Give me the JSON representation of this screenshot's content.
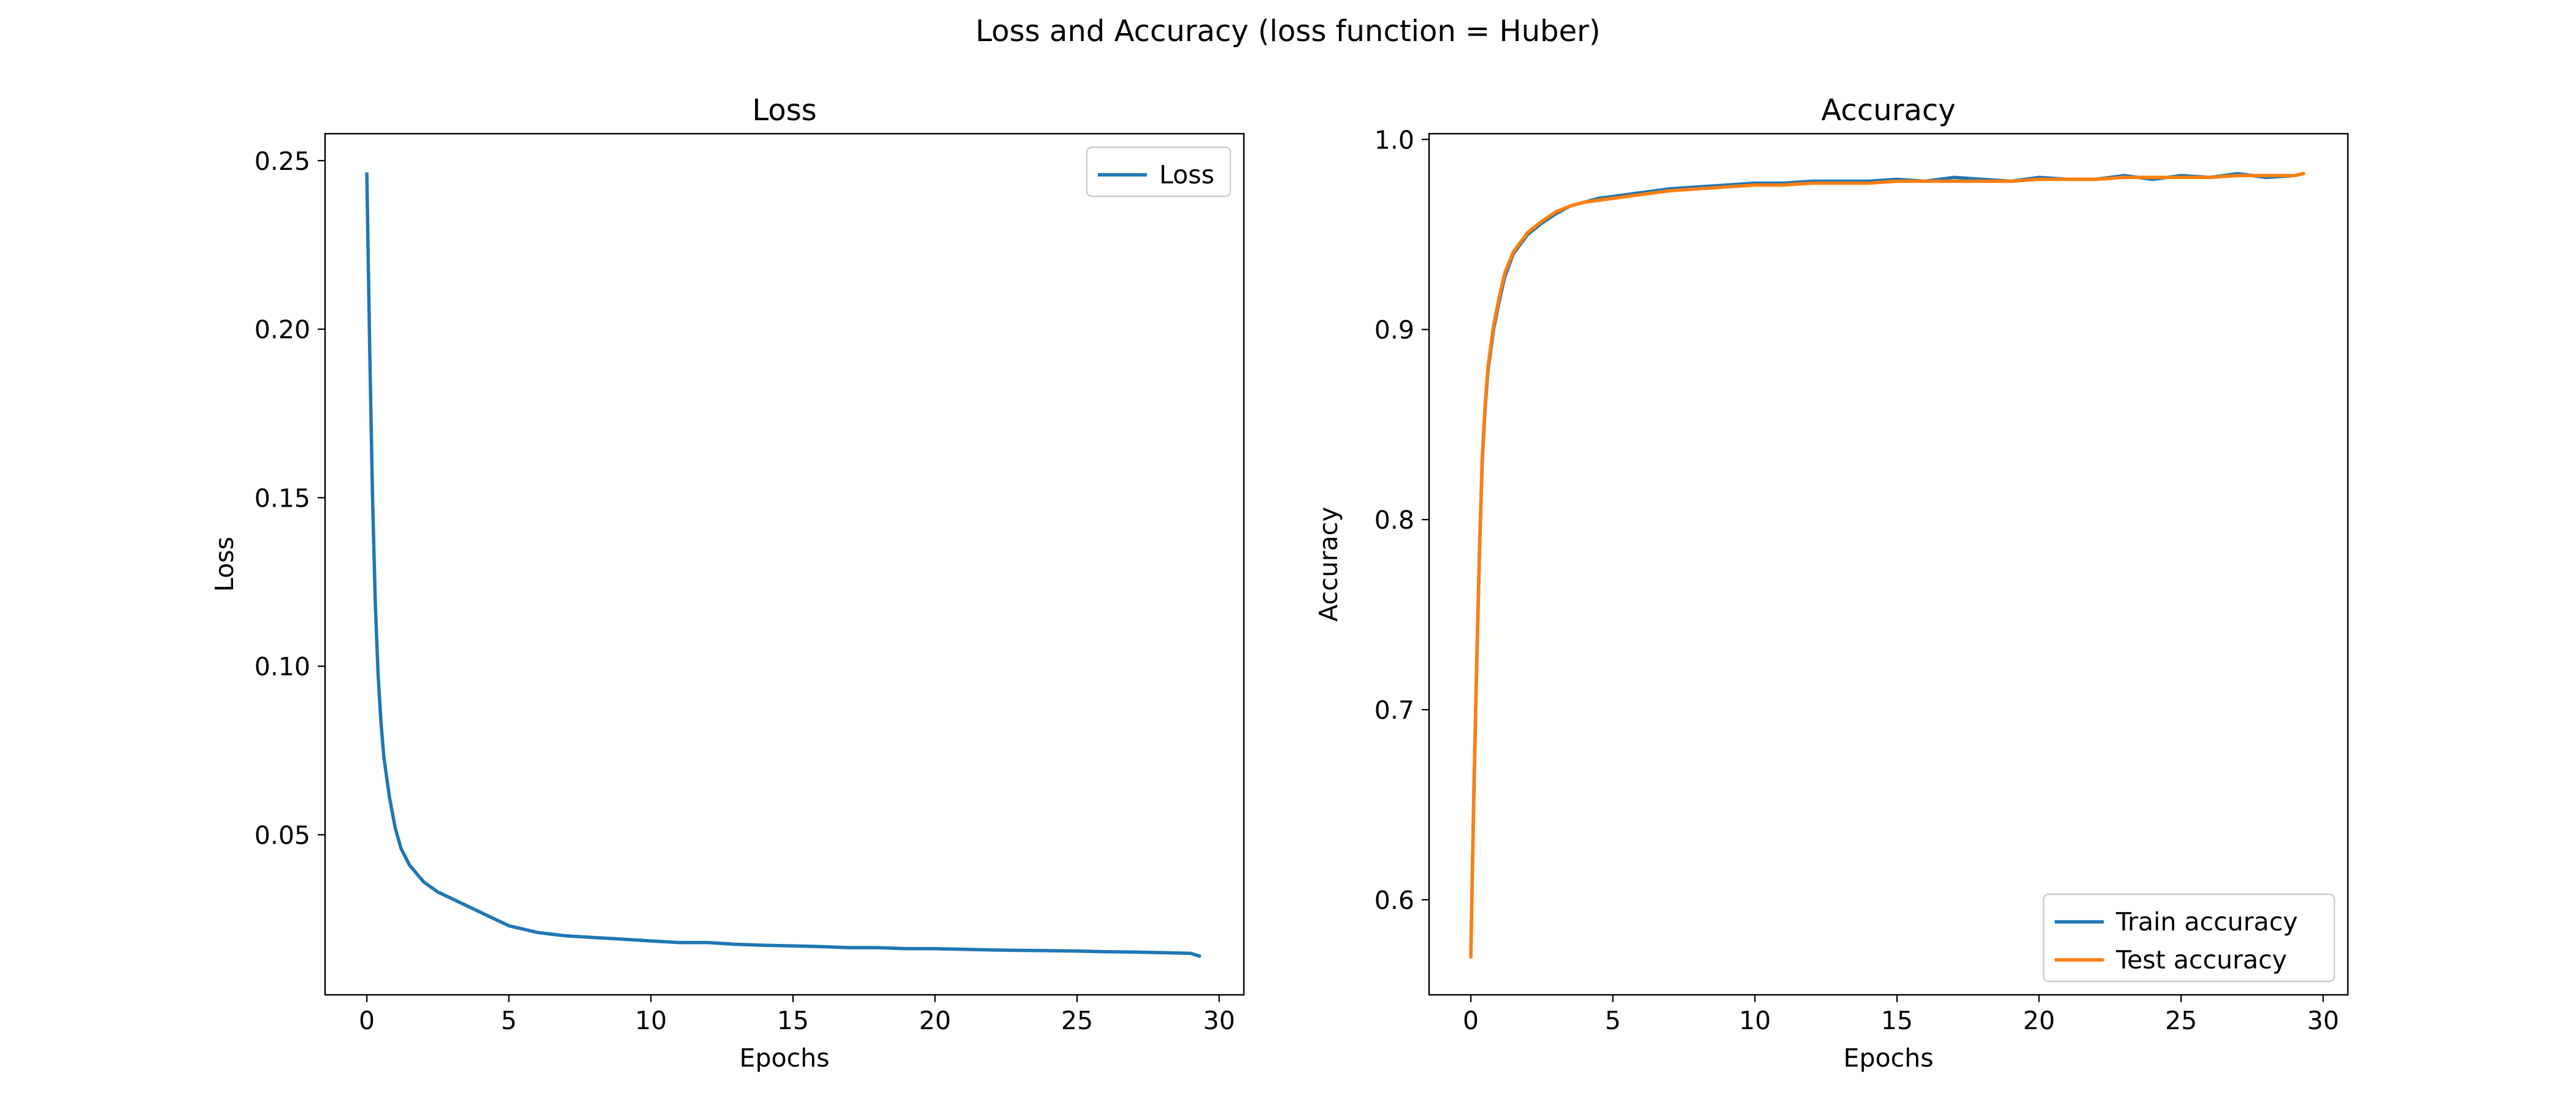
{
  "figure": {
    "suptitle": "Loss and Accuracy (loss function = Huber)"
  },
  "chart_data": [
    {
      "type": "line",
      "title": "Loss",
      "xlabel": "Epochs",
      "ylabel": "Loss",
      "xlim": [
        -1.47,
        30.87
      ],
      "ylim": [
        0.0025,
        0.258
      ],
      "xticks": [
        0,
        5,
        10,
        15,
        20,
        25,
        30
      ],
      "yticks": [
        0.05,
        0.1,
        0.15,
        0.2,
        0.25
      ],
      "xtick_labels": [
        "0",
        "5",
        "10",
        "15",
        "20",
        "25",
        "30"
      ],
      "ytick_labels": [
        "0.05",
        "0.10",
        "0.15",
        "0.20",
        "0.25"
      ],
      "grid": false,
      "legend": {
        "position": "upper-right",
        "entries": [
          "Loss"
        ]
      },
      "series": [
        {
          "name": "Loss",
          "color": "#1f77b4",
          "x": [
            0,
            0.1,
            0.2,
            0.3,
            0.4,
            0.5,
            0.6,
            0.8,
            1.0,
            1.2,
            1.5,
            1.8,
            2.0,
            2.5,
            3.0,
            3.5,
            4.0,
            4.5,
            5.0,
            5.5,
            6.0,
            6.5,
            7.0,
            8.0,
            9.0,
            10.0,
            11.0,
            12.0,
            13.0,
            14.0,
            15.0,
            16.0,
            17.0,
            18.0,
            19.0,
            20.0,
            21.0,
            22.0,
            23.0,
            24.0,
            25.0,
            26.0,
            27.0,
            28.0,
            29.0,
            29.3
          ],
          "y": [
            0.246,
            0.195,
            0.15,
            0.118,
            0.097,
            0.083,
            0.073,
            0.061,
            0.052,
            0.046,
            0.041,
            0.038,
            0.036,
            0.033,
            0.031,
            0.029,
            0.027,
            0.025,
            0.023,
            0.022,
            0.021,
            0.0205,
            0.02,
            0.0195,
            0.019,
            0.0185,
            0.018,
            0.018,
            0.0175,
            0.0172,
            0.017,
            0.0168,
            0.0165,
            0.0165,
            0.0162,
            0.0162,
            0.016,
            0.0158,
            0.0157,
            0.0156,
            0.0155,
            0.0153,
            0.0152,
            0.015,
            0.0148,
            0.014
          ]
        }
      ]
    },
    {
      "type": "line",
      "title": "Accuracy",
      "xlabel": "Epochs",
      "ylabel": "Accuracy",
      "xlim": [
        -1.47,
        30.87
      ],
      "ylim": [
        0.55,
        1.003
      ],
      "xticks": [
        0,
        5,
        10,
        15,
        20,
        25,
        30
      ],
      "yticks": [
        0.6,
        0.7,
        0.8,
        0.9,
        1.0
      ],
      "xtick_labels": [
        "0",
        "5",
        "10",
        "15",
        "20",
        "25",
        "30"
      ],
      "ytick_labels": [
        "0.6",
        "0.7",
        "0.8",
        "0.9",
        "1.0"
      ],
      "grid": false,
      "legend": {
        "position": "lower-right",
        "entries": [
          "Train accuracy",
          "Test accuracy"
        ]
      },
      "series": [
        {
          "name": "Train accuracy",
          "color": "#1f77b4",
          "x": [
            0,
            0.1,
            0.2,
            0.3,
            0.4,
            0.5,
            0.6,
            0.8,
            1.0,
            1.2,
            1.5,
            1.8,
            2.0,
            2.5,
            3.0,
            3.5,
            4.0,
            4.5,
            5.0,
            6.0,
            7.0,
            8.0,
            9.0,
            10.0,
            11.0,
            12.0,
            13.0,
            14.0,
            15.0,
            16.0,
            17.0,
            18.0,
            19.0,
            20.0,
            21.0,
            22.0,
            23.0,
            24.0,
            25.0,
            26.0,
            27.0,
            28.0,
            29.0,
            29.3
          ],
          "y": [
            0.572,
            0.65,
            0.72,
            0.78,
            0.83,
            0.858,
            0.878,
            0.9,
            0.915,
            0.928,
            0.94,
            0.946,
            0.95,
            0.956,
            0.961,
            0.965,
            0.967,
            0.969,
            0.97,
            0.972,
            0.974,
            0.975,
            0.976,
            0.977,
            0.977,
            0.978,
            0.978,
            0.978,
            0.979,
            0.978,
            0.98,
            0.979,
            0.978,
            0.98,
            0.979,
            0.979,
            0.981,
            0.979,
            0.981,
            0.98,
            0.982,
            0.98,
            0.981,
            0.982
          ]
        },
        {
          "name": "Test accuracy",
          "color": "#ff7f0e",
          "x": [
            0,
            0.1,
            0.2,
            0.3,
            0.4,
            0.5,
            0.6,
            0.8,
            1.0,
            1.2,
            1.5,
            1.8,
            2.0,
            2.5,
            3.0,
            3.5,
            4.0,
            4.5,
            5.0,
            6.0,
            7.0,
            8.0,
            9.0,
            10.0,
            11.0,
            12.0,
            13.0,
            14.0,
            15.0,
            16.0,
            17.0,
            18.0,
            19.0,
            20.0,
            21.0,
            22.0,
            23.0,
            24.0,
            25.0,
            26.0,
            27.0,
            28.0,
            29.0,
            29.3
          ],
          "y": [
            0.57,
            0.652,
            0.722,
            0.782,
            0.832,
            0.86,
            0.88,
            0.902,
            0.917,
            0.93,
            0.941,
            0.947,
            0.951,
            0.957,
            0.962,
            0.965,
            0.967,
            0.968,
            0.969,
            0.971,
            0.973,
            0.974,
            0.975,
            0.976,
            0.976,
            0.977,
            0.977,
            0.977,
            0.978,
            0.978,
            0.978,
            0.978,
            0.978,
            0.979,
            0.979,
            0.979,
            0.98,
            0.98,
            0.98,
            0.98,
            0.981,
            0.981,
            0.981,
            0.982
          ]
        }
      ]
    }
  ]
}
